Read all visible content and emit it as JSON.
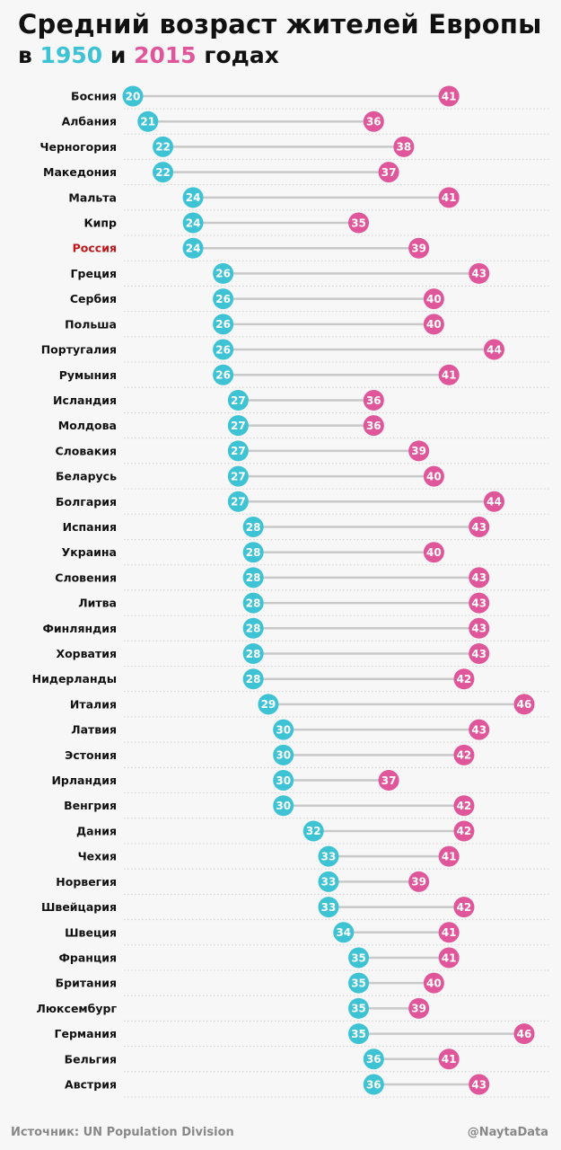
{
  "title": {
    "line1": "Средний возраст жителей Европы",
    "line2_prefix": "в",
    "year1": "1950",
    "line2_mid": "и",
    "year2": "2015",
    "line2_suffix": "годах"
  },
  "colors": {
    "y1950": "#3ec3d5",
    "y2015": "#e0569a",
    "highlight": "#c0161b",
    "connector": "#c9c9c9",
    "rowline": "#d0d0d0",
    "label": "#111111"
  },
  "footer": {
    "source": "Источник: UN Population Division",
    "credit": "@NaytaData"
  },
  "chart_data": {
    "type": "dot",
    "title": "Средний возраст жителей Европы в 1950 и 2015 годах",
    "highlight": "Россия",
    "series": [
      {
        "name": "1950",
        "key": "v1950"
      },
      {
        "name": "2015",
        "key": "v2015"
      }
    ],
    "rows": [
      {
        "country": "Босния",
        "v1950": 20,
        "v2015": 41
      },
      {
        "country": "Албания",
        "v1950": 21,
        "v2015": 36
      },
      {
        "country": "Черногория",
        "v1950": 22,
        "v2015": 38
      },
      {
        "country": "Македония",
        "v1950": 22,
        "v2015": 37
      },
      {
        "country": "Мальта",
        "v1950": 24,
        "v2015": 41
      },
      {
        "country": "Кипр",
        "v1950": 24,
        "v2015": 35
      },
      {
        "country": "Россия",
        "v1950": 24,
        "v2015": 39
      },
      {
        "country": "Греция",
        "v1950": 26,
        "v2015": 43
      },
      {
        "country": "Сербия",
        "v1950": 26,
        "v2015": 40
      },
      {
        "country": "Польша",
        "v1950": 26,
        "v2015": 40
      },
      {
        "country": "Португалия",
        "v1950": 26,
        "v2015": 44
      },
      {
        "country": "Румыния",
        "v1950": 26,
        "v2015": 41
      },
      {
        "country": "Исландия",
        "v1950": 27,
        "v2015": 36
      },
      {
        "country": "Молдова",
        "v1950": 27,
        "v2015": 36
      },
      {
        "country": "Словакия",
        "v1950": 27,
        "v2015": 39
      },
      {
        "country": "Беларусь",
        "v1950": 27,
        "v2015": 40
      },
      {
        "country": "Болгария",
        "v1950": 27,
        "v2015": 44
      },
      {
        "country": "Испания",
        "v1950": 28,
        "v2015": 43
      },
      {
        "country": "Украина",
        "v1950": 28,
        "v2015": 40
      },
      {
        "country": "Словения",
        "v1950": 28,
        "v2015": 43
      },
      {
        "country": "Литва",
        "v1950": 28,
        "v2015": 43
      },
      {
        "country": "Финляндия",
        "v1950": 28,
        "v2015": 43
      },
      {
        "country": "Хорватия",
        "v1950": 28,
        "v2015": 43
      },
      {
        "country": "Нидерланды",
        "v1950": 28,
        "v2015": 42
      },
      {
        "country": "Италия",
        "v1950": 29,
        "v2015": 46
      },
      {
        "country": "Латвия",
        "v1950": 30,
        "v2015": 43
      },
      {
        "country": "Эстония",
        "v1950": 30,
        "v2015": 42
      },
      {
        "country": "Ирландия",
        "v1950": 30,
        "v2015": 37
      },
      {
        "country": "Венгрия",
        "v1950": 30,
        "v2015": 42
      },
      {
        "country": "Дания",
        "v1950": 32,
        "v2015": 42
      },
      {
        "country": "Чехия",
        "v1950": 33,
        "v2015": 41
      },
      {
        "country": "Норвегия",
        "v1950": 33,
        "v2015": 39
      },
      {
        "country": "Швейцария",
        "v1950": 33,
        "v2015": 42
      },
      {
        "country": "Швеция",
        "v1950": 34,
        "v2015": 41
      },
      {
        "country": "Франция",
        "v1950": 35,
        "v2015": 41
      },
      {
        "country": "Британия",
        "v1950": 35,
        "v2015": 40
      },
      {
        "country": "Люксембург",
        "v1950": 35,
        "v2015": 39
      },
      {
        "country": "Германия",
        "v1950": 35,
        "v2015": 46
      },
      {
        "country": "Бельгия",
        "v1950": 36,
        "v2015": 41
      },
      {
        "country": "Австрия",
        "v1950": 36,
        "v2015": 43
      }
    ]
  }
}
